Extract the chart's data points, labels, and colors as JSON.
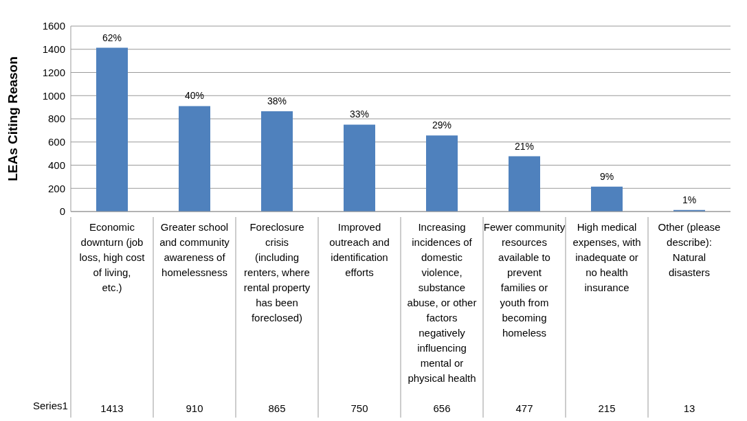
{
  "chart_data": {
    "type": "bar",
    "ylabel": "LEAs Citing Reason",
    "categories": [
      "Economic downturn (job loss, high cost of living, etc.)",
      "Greater school and community awareness of homelessness",
      "Foreclosure crisis (including renters, where rental property has been foreclosed)",
      "Improved outreach and identification efforts",
      "Increasing incidences of domestic violence, substance abuse, or other factors negatively influencing mental or physical health",
      "Fewer community resources available to prevent families or youth from becoming homeless",
      "High medical expenses, with inadequate or no health insurance",
      "Other (please describe): Natural disasters"
    ],
    "series": [
      {
        "name": "Series1",
        "color": "#4f81bd",
        "values": [
          1413,
          910,
          865,
          750,
          656,
          477,
          215,
          13
        ]
      }
    ],
    "annotations": [
      {
        "text": "62%",
        "x": "Economic downturn (job loss, high cost of living, etc.)",
        "y": 1413
      },
      {
        "text": "40%",
        "x": "Greater school and community awareness of homelessness",
        "y": 910
      },
      {
        "text": "38%",
        "x": "Foreclosure crisis (including renters, where rental property has been foreclosed)",
        "y": 865
      },
      {
        "text": "33%",
        "x": "Improved outreach and identification efforts",
        "y": 750
      },
      {
        "text": "29%",
        "x": "Increasing incidences of domestic violence, substance abuse, or other factors negatively influencing mental or physical health",
        "y": 656
      },
      {
        "text": "21%",
        "x": "Fewer community resources available to prevent families or youth from becoming homeless",
        "y": 477
      },
      {
        "text": "9%",
        "x": "High medical expenses, with inadequate or no health insurance",
        "y": 215
      },
      {
        "text": "1%",
        "x": "Other (please describe): Natural disasters",
        "y": 13
      }
    ],
    "ylim": [
      0,
      1600
    ],
    "yticks": [
      0,
      200,
      400,
      600,
      800,
      1000,
      1200,
      1400,
      1600
    ],
    "grid": "y",
    "data_labels": true
  }
}
